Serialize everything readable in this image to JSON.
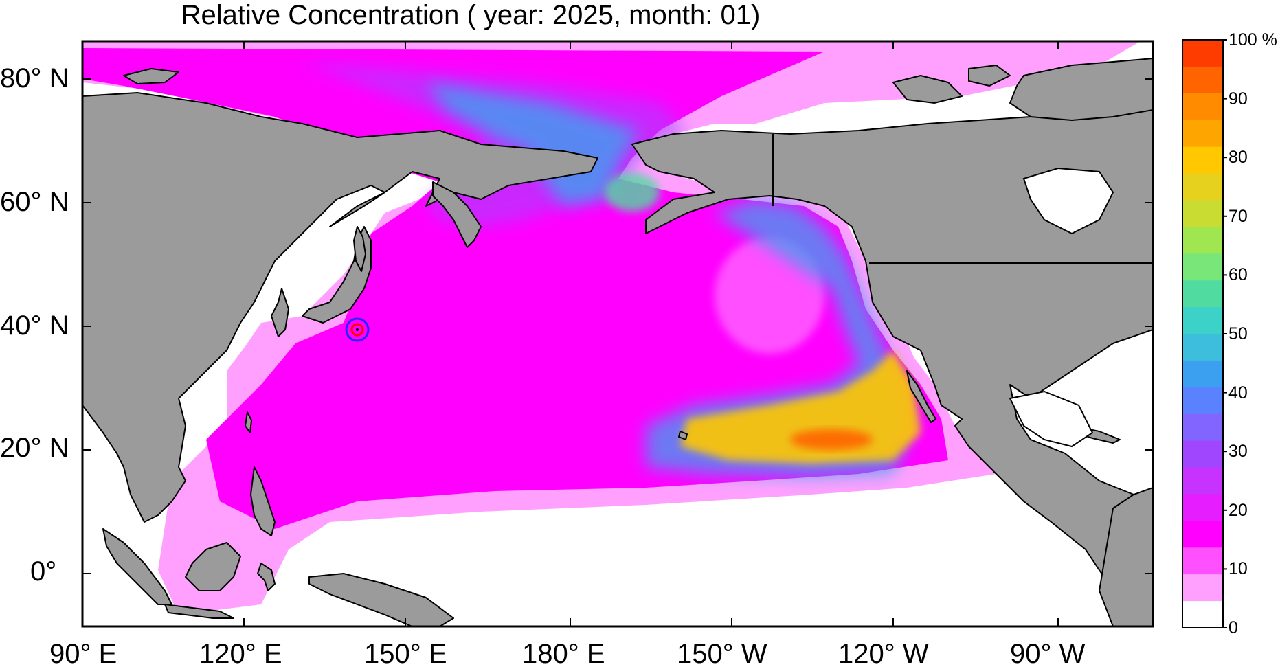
{
  "title": "Relative Concentration ( year: 2025, month: 01)",
  "lat_labels": [
    "80° N",
    "60° N",
    "40° N",
    "20° N",
    "0°"
  ],
  "lon_labels": [
    "90° E",
    "120° E",
    "150° E",
    "180° E",
    "150° W",
    "120° W",
    "90° W"
  ],
  "colorbar": {
    "tick_labels": [
      "100 %",
      "90",
      "80",
      "70",
      "60",
      "50",
      "40",
      "30",
      "20",
      "10",
      "0"
    ],
    "colors": [
      "#ff3c00",
      "#ff6400",
      "#ff8c00",
      "#ffa500",
      "#ffc800",
      "#e6d21e",
      "#c8dc32",
      "#a0e650",
      "#78e678",
      "#50dca0",
      "#3cd2c8",
      "#3cbedc",
      "#3ca0f0",
      "#5a82ff",
      "#8264ff",
      "#a046ff",
      "#c832ff",
      "#e61eff",
      "#ff00ff",
      "#ff50ff",
      "#ffa0ff",
      "#ffffff"
    ]
  },
  "colors": {
    "land": "#9b9b9b",
    "ice_white": "#ffffff",
    "concentration_low": "#ffa0ff",
    "concentration_base": "#ff00ff",
    "concentration_purple": "#a046ff",
    "concentration_blue": "#3ca0f0",
    "concentration_peak": "#ff3c00",
    "source_marker_outer": "#1e28ff",
    "source_marker_inner": "#ff0000"
  },
  "legend_marker": {
    "name": "source-location-marker"
  }
}
